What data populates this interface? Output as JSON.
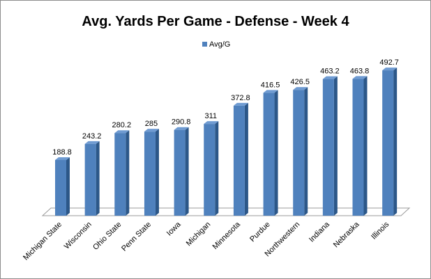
{
  "chart_data": {
    "type": "bar",
    "title": "Avg. Yards Per Game - Defense - Week 4",
    "xlabel": "",
    "ylabel": "",
    "ylim": [
      0,
      520
    ],
    "grid": false,
    "legend_position": "top-center",
    "categories": [
      "Michigan State",
      "Wisconsin",
      "Ohio State",
      "Penn State",
      "Iowa",
      "Michigan",
      "Minnesota",
      "Purdue",
      "Northwestern",
      "Indiana",
      "Nebraska",
      "Illinois"
    ],
    "series": [
      {
        "name": "Avg/G",
        "color": "#4f81bd",
        "values": [
          188.8,
          243.2,
          280.2,
          285,
          290.8,
          311,
          372.8,
          416.5,
          426.5,
          463.2,
          463.8,
          492.7
        ]
      }
    ]
  }
}
